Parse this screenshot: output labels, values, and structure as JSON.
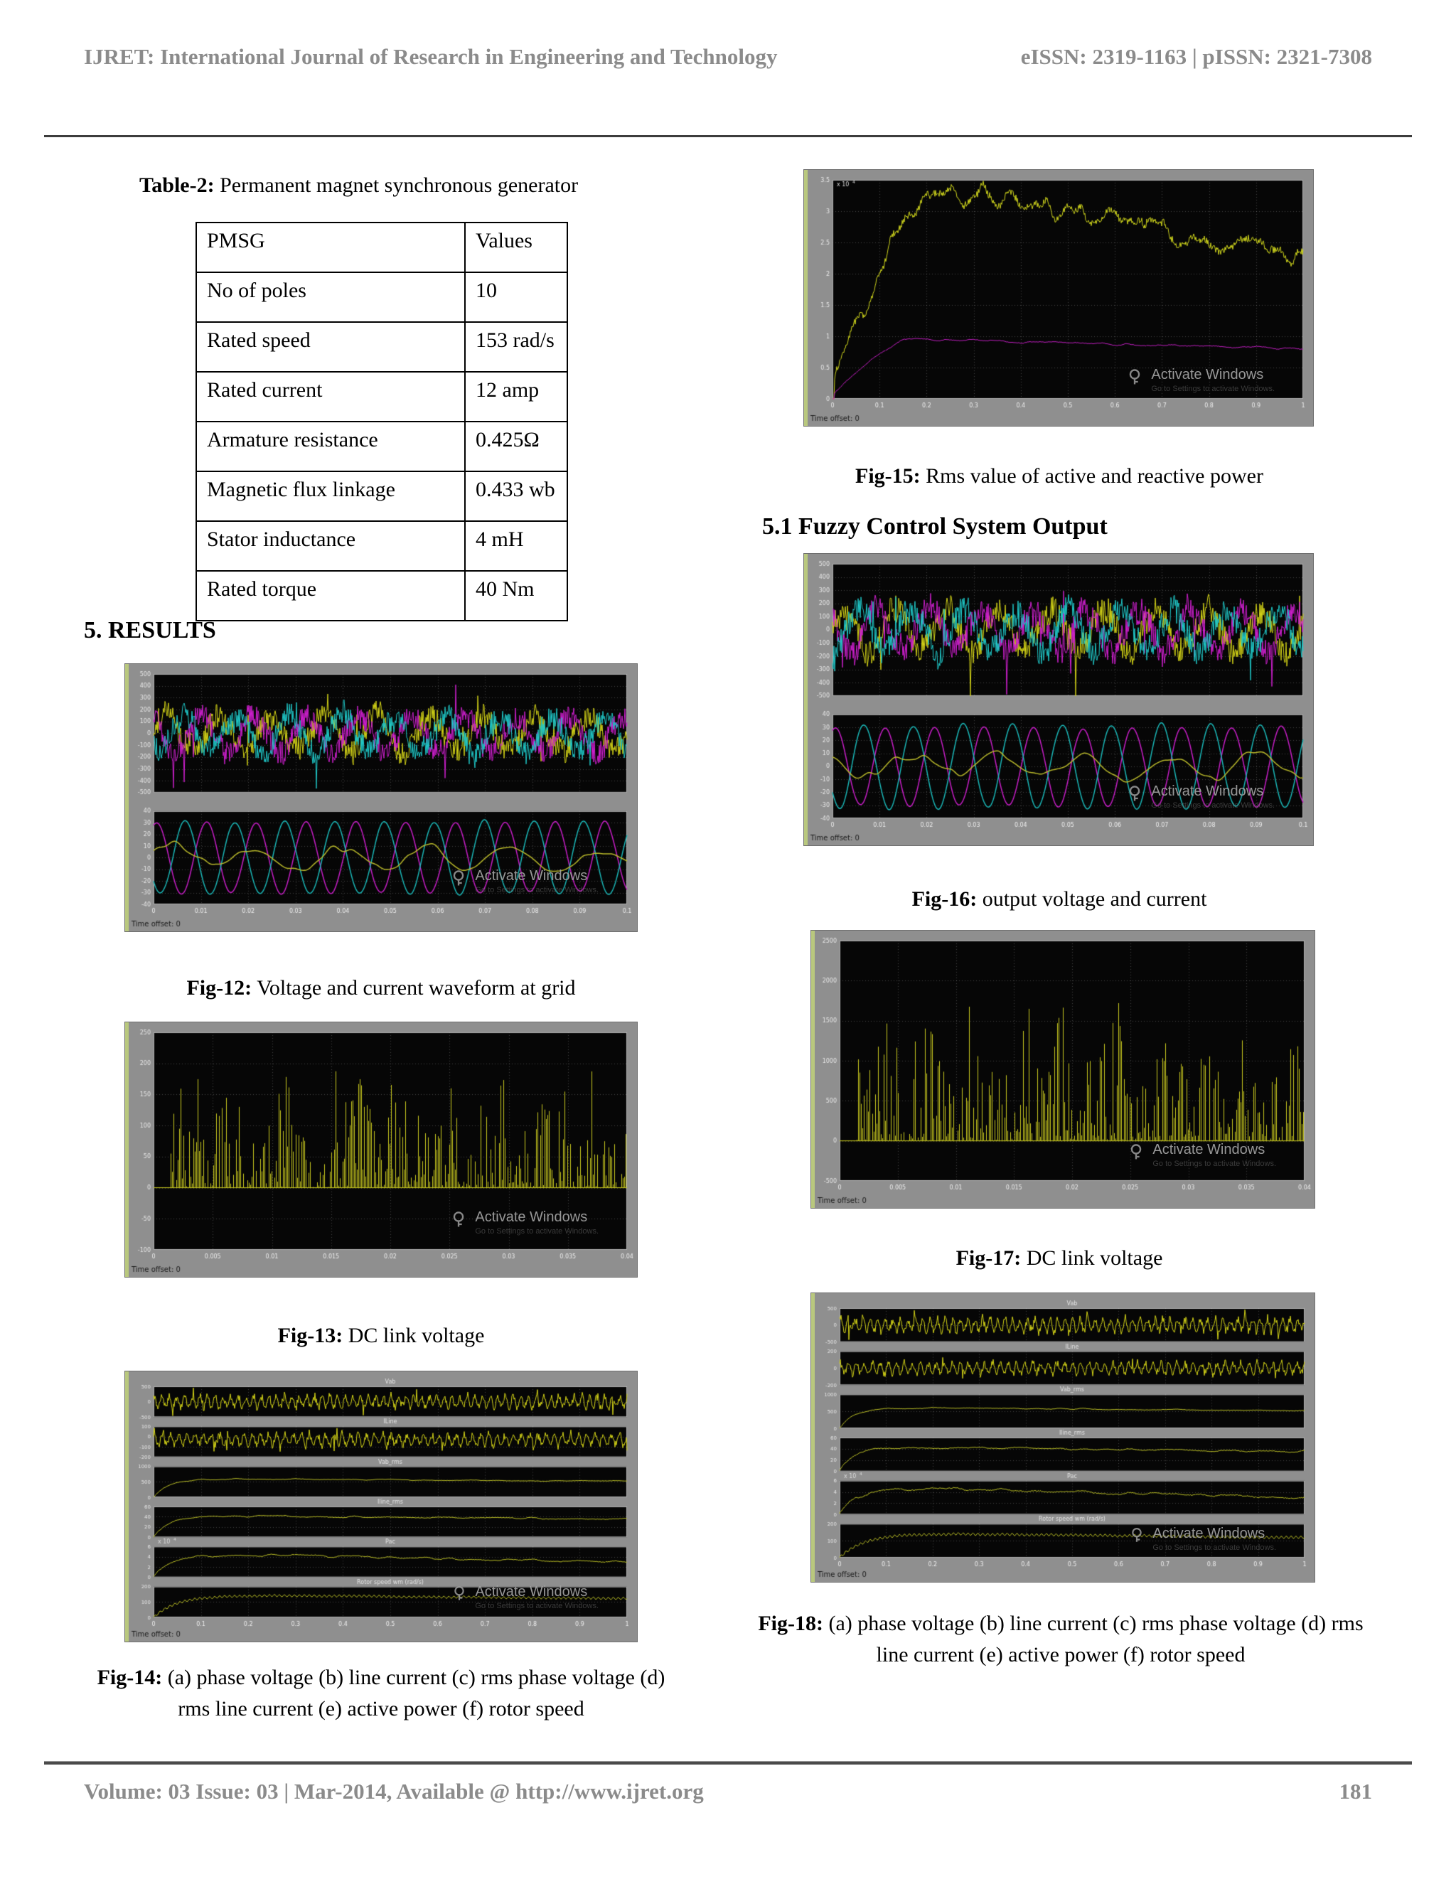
{
  "page": {
    "header": {
      "left": "IJRET: International Journal of Research in Engineering and Technology",
      "right": "eISSN: 2319-1163 | pISSN: 2321-7308"
    },
    "footer": {
      "left": "Volume: 03 Issue: 03 | Mar-2014, Available @ http://www.ijret.org",
      "page_number": "181"
    }
  },
  "sections": {
    "results": "5. RESULTS",
    "fuzzy": "5.1 Fuzzy Control System Output"
  },
  "table2": {
    "caption_label": "Table-2:",
    "caption_text": " Permanent magnet synchronous generator",
    "headers": [
      "PMSG",
      "Values"
    ],
    "rows": [
      [
        "No of poles",
        "10"
      ],
      [
        "Rated speed",
        "153 rad/s"
      ],
      [
        "Rated current",
        "12 amp"
      ],
      [
        "Armature resistance",
        "0.425Ω"
      ],
      [
        "Magnetic flux linkage",
        "0.433 wb"
      ],
      [
        "Stator inductance",
        "4 mH"
      ],
      [
        "Rated torque",
        "40 Nm"
      ]
    ]
  },
  "captions": {
    "fig12": {
      "label": "Fig-12:",
      "text": " Voltage and current waveform at grid"
    },
    "fig13": {
      "label": "Fig-13:",
      "text": " DC link voltage"
    },
    "fig14": {
      "label": "Fig-14:",
      "text": " (a) phase voltage (b) line current (c) rms phase voltage (d) rms line current (e) active power (f) rotor speed"
    },
    "fig15": {
      "label": "Fig-15:",
      "text": " Rms value of active and reactive power"
    },
    "fig16": {
      "label": "Fig-16:",
      "text": " output voltage and current"
    },
    "fig17": {
      "label": "Fig-17:",
      "text": " DC link voltage"
    },
    "fig18": {
      "label": "Fig-18:",
      "text": " (a) phase voltage (b) line current (c) rms phase voltage (d) rms line current (e) active power (f) rotor speed"
    }
  },
  "watermark": {
    "line1": "Activate Windows",
    "line2": "Go to Settings to activate Windows."
  },
  "scope_ui": {
    "time_offset": "Time offset: 0",
    "exp_label": "x 10",
    "exp_sup": "4"
  },
  "figures": {
    "fig12": {
      "seed": 12,
      "panel_gap": 26,
      "xticks": [
        "0",
        "0.01",
        "0.02",
        "0.03",
        "0.04",
        "0.05",
        "0.06",
        "0.07",
        "0.08",
        "0.09",
        "0.1"
      ],
      "panels": [
        {
          "weight": 0.56,
          "ylim": [
            -500,
            500
          ],
          "yticks": [
            500,
            400,
            300,
            200,
            100,
            0,
            -100,
            -200,
            -300,
            -400,
            -500
          ],
          "traces": [
            {
              "type": "phase-noise",
              "color": "#d4d417",
              "amp": 205,
              "cycles": 9,
              "phase": 0,
              "jitter": 105
            },
            {
              "type": "phase-noise",
              "color": "#d01fd0",
              "amp": 205,
              "cycles": 9,
              "phase": 2.09,
              "jitter": 105
            },
            {
              "type": "phase-noise",
              "color": "#1fc9c9",
              "amp": 205,
              "cycles": 9,
              "phase": 4.19,
              "jitter": 105
            }
          ]
        },
        {
          "weight": 0.44,
          "ylim": [
            -40,
            40
          ],
          "yticks": [
            40,
            30,
            20,
            10,
            0,
            -10,
            -20,
            -30,
            -40
          ],
          "traces": [
            {
              "type": "sine",
              "color": "#c81ec8",
              "amp": 31,
              "cycles": 9.5,
              "phase": 1.2
            },
            {
              "type": "sine",
              "color": "#1ab8b8",
              "amp": 32,
              "cycles": 9.5,
              "phase": 3.85
            },
            {
              "type": "wobble",
              "color": "#b9b92a",
              "amp": 9,
              "cycles": 5.5,
              "phase": 0.5
            }
          ]
        }
      ]
    },
    "fig13": {
      "seed": 13,
      "panel_gap": 0,
      "xticks": [
        "0",
        "0.005",
        "0.01",
        "0.015",
        "0.02",
        "0.025",
        "0.03",
        "0.035",
        "0.04"
      ],
      "panels": [
        {
          "weight": 1,
          "ylim": [
            -100,
            250
          ],
          "yticks": [
            250,
            200,
            150,
            100,
            50,
            0,
            -50,
            -100
          ],
          "traces": [
            {
              "type": "spikes",
              "color": "#c9c91e",
              "max": 200,
              "pow": 2.1
            }
          ]
        }
      ]
    },
    "fig14": {
      "seed": 14,
      "panel_gap": 0,
      "xticks": [
        "0",
        "0.1",
        "0.2",
        "0.3",
        "0.4",
        "0.5",
        "0.6",
        "0.7",
        "0.8",
        "0.9",
        "1"
      ],
      "panels": [
        {
          "weight": 1,
          "title": "Vab",
          "ylim": [
            -500,
            500
          ],
          "yticks": [
            500,
            0,
            -500
          ],
          "traces": [
            {
              "type": "dense",
              "color": "#d4d417",
              "amp": 250,
              "cycles": 62,
              "spike": 1.9,
              "offset": 0
            }
          ]
        },
        {
          "weight": 1,
          "title": "ILine",
          "ylim": [
            -200,
            100
          ],
          "yticks": [
            100,
            0,
            -100,
            -200
          ],
          "traces": [
            {
              "type": "dense",
              "color": "#d4d417",
              "amp": 72,
              "cycles": 58,
              "spike": 1.6,
              "offset": -30
            }
          ]
        },
        {
          "weight": 1,
          "title": "Vab_rms",
          "ylim": [
            0,
            1000
          ],
          "yticks": [
            1000,
            500,
            0
          ],
          "traces": [
            {
              "type": "rise-hold",
              "color": "#b9bd25",
              "plateau": 590,
              "tau": 0.03,
              "decline_to": 520,
              "noise": 0.03
            }
          ]
        },
        {
          "weight": 1,
          "title": "Iline_rms",
          "ylim": [
            0,
            60
          ],
          "yticks": [
            60,
            40,
            20,
            0
          ],
          "traces": [
            {
              "type": "rise-hold",
              "color": "#b9bd25",
              "plateau": 41,
              "tau": 0.03,
              "decline_to": 36,
              "noise": 0.04
            }
          ]
        },
        {
          "weight": 1,
          "title": "Pac",
          "exp": true,
          "ylim": [
            0,
            6
          ],
          "yticks": [
            6,
            4,
            2,
            0
          ],
          "traces": [
            {
              "type": "rise-hold",
              "color": "#b9bd25",
              "plateau": 4.3,
              "tau": 0.035,
              "decline_to": 3.0,
              "noise": 0.05
            }
          ]
        },
        {
          "weight": 1,
          "title": "Rotor speed wm (rad/s)",
          "ylim": [
            0,
            200
          ],
          "yticks": [
            200,
            100,
            0
          ],
          "traces": [
            {
              "type": "rise-hold",
              "color": "#b9bd25",
              "plateau": 142,
              "tau": 0.05,
              "decline_to": 122,
              "noise": 0.015,
              "ripple": 7,
              "ripple_cycles": 95
            }
          ]
        }
      ]
    },
    "fig15": {
      "seed": 15,
      "panel_gap": 0,
      "xticks": [
        "0",
        "0.1",
        "0.2",
        "0.3",
        "0.4",
        "0.5",
        "0.6",
        "0.7",
        "0.8",
        "0.9",
        "1"
      ],
      "panels": [
        {
          "weight": 1,
          "exp": true,
          "ylim": [
            0,
            3.5
          ],
          "yticks": [
            3.5,
            3,
            2.5,
            2,
            1.5,
            1,
            0.5,
            0
          ],
          "traces": [
            {
              "type": "rise-decay",
              "color": "#cdd31c",
              "peak": 3.38,
              "peak_x": 0.2,
              "end": 2.25,
              "noise": 0.055
            },
            {
              "type": "rise-decay",
              "color": "#c01ec0",
              "peak": 0.96,
              "peak_x": 0.15,
              "end": 0.8,
              "noise": 0.018
            }
          ]
        }
      ]
    },
    "fig16": {
      "seed": 16,
      "panel_gap": 26,
      "xticks": [
        "0",
        "0.01",
        "0.02",
        "0.03",
        "0.04",
        "0.05",
        "0.06",
        "0.07",
        "0.08",
        "0.09",
        "0.1"
      ],
      "panels": [
        {
          "weight": 0.56,
          "ylim": [
            -500,
            500
          ],
          "yticks": [
            500,
            400,
            300,
            200,
            100,
            0,
            -100,
            -200,
            -300,
            -400,
            -500
          ],
          "traces": [
            {
              "type": "phase-noise",
              "color": "#d4d417",
              "amp": 205,
              "cycles": 9,
              "phase": 0.4,
              "jitter": 105
            },
            {
              "type": "phase-noise",
              "color": "#d01fd0",
              "amp": 205,
              "cycles": 9,
              "phase": 2.5,
              "jitter": 105
            },
            {
              "type": "phase-noise",
              "color": "#1fc9c9",
              "amp": 205,
              "cycles": 9,
              "phase": 4.6,
              "jitter": 105
            }
          ]
        },
        {
          "weight": 0.44,
          "ylim": [
            -40,
            40
          ],
          "yticks": [
            40,
            30,
            20,
            10,
            0,
            -10,
            -20,
            -30,
            -40
          ],
          "traces": [
            {
              "type": "sine",
              "color": "#c81ec8",
              "amp": 31,
              "cycles": 9.5,
              "phase": 1.2
            },
            {
              "type": "sine",
              "color": "#1ab8b8",
              "amp": 33,
              "cycles": 9.5,
              "phase": 3.85
            },
            {
              "type": "wobble",
              "color": "#b9b92a",
              "amp": 9,
              "cycles": 5.5,
              "phase": 2.1
            }
          ]
        }
      ]
    },
    "fig17": {
      "seed": 17,
      "panel_gap": 0,
      "xticks": [
        "0",
        "0.005",
        "0.01",
        "0.015",
        "0.02",
        "0.025",
        "0.03",
        "0.035",
        "0.04"
      ],
      "panels": [
        {
          "weight": 1,
          "ylim": [
            -500,
            2500
          ],
          "yticks": [
            2500,
            2000,
            1500,
            1000,
            500,
            0,
            -500
          ],
          "traces": [
            {
              "type": "spikes",
              "color": "#c9c91e",
              "max": 2050,
              "pow": 2.3
            }
          ]
        }
      ]
    },
    "fig18": {
      "seed": 18,
      "panel_gap": 0,
      "xticks": [
        "0",
        "0.1",
        "0.2",
        "0.3",
        "0.4",
        "0.5",
        "0.6",
        "0.7",
        "0.8",
        "0.9",
        "1"
      ],
      "panels": [
        {
          "weight": 1,
          "title": "Vab",
          "ylim": [
            -500,
            500
          ],
          "yticks": [
            500,
            0,
            -500
          ],
          "traces": [
            {
              "type": "dense",
              "color": "#d4d417",
              "amp": 250,
              "cycles": 62,
              "spike": 1.9,
              "offset": 0
            }
          ]
        },
        {
          "weight": 1,
          "title": "ILine",
          "ylim": [
            -200,
            200
          ],
          "yticks": [
            200,
            0,
            -200
          ],
          "traces": [
            {
              "type": "dense",
              "color": "#d4d417",
              "amp": 85,
              "cycles": 58,
              "spike": 1.5,
              "offset": 0
            }
          ]
        },
        {
          "weight": 1,
          "title": "Vab_rms",
          "ylim": [
            0,
            1000
          ],
          "yticks": [
            1000,
            500,
            0
          ],
          "traces": [
            {
              "type": "rise-hold",
              "color": "#b9bd25",
              "plateau": 600,
              "tau": 0.03,
              "decline_to": 520,
              "noise": 0.03
            }
          ]
        },
        {
          "weight": 1,
          "title": "Iline_rms",
          "ylim": [
            0,
            60
          ],
          "yticks": [
            60,
            40,
            20,
            0
          ],
          "traces": [
            {
              "type": "rise-hold",
              "color": "#b9bd25",
              "plateau": 42,
              "tau": 0.03,
              "decline_to": 35,
              "noise": 0.045
            }
          ]
        },
        {
          "weight": 1,
          "title": "Pac",
          "exp": true,
          "ylim": [
            0,
            6
          ],
          "yticks": [
            6,
            4,
            2,
            0
          ],
          "traces": [
            {
              "type": "rise-hold",
              "color": "#b9bd25",
              "plateau": 4.5,
              "tau": 0.035,
              "decline_to": 3.0,
              "noise": 0.06
            }
          ]
        },
        {
          "weight": 1,
          "title": "Rotor speed wm (rad/s)",
          "ylim": [
            0,
            200
          ],
          "yticks": [
            200,
            100,
            0
          ],
          "traces": [
            {
              "type": "rise-hold",
              "color": "#b9bd25",
              "plateau": 140,
              "tau": 0.05,
              "decline_to": 118,
              "noise": 0.015,
              "ripple": 7,
              "ripple_cycles": 95
            }
          ]
        }
      ]
    }
  }
}
